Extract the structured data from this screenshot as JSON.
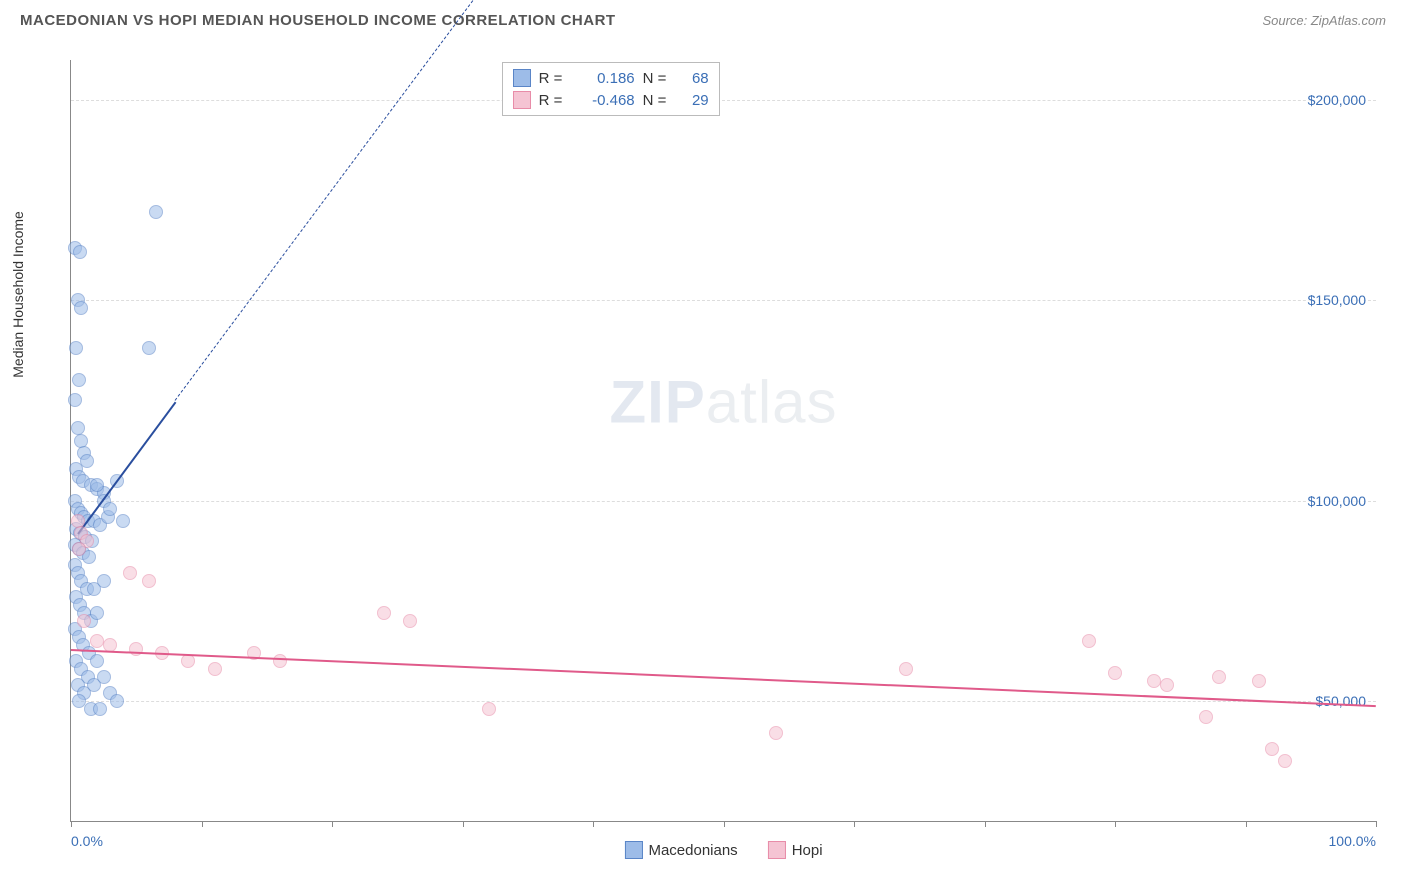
{
  "header": {
    "title": "MACEDONIAN VS HOPI MEDIAN HOUSEHOLD INCOME CORRELATION CHART",
    "source": "Source: ZipAtlas.com"
  },
  "watermark": {
    "bold": "ZIP",
    "light": "atlas"
  },
  "chart": {
    "type": "scatter",
    "ylabel": "Median Household Income",
    "xlim": [
      0,
      100
    ],
    "ylim": [
      20000,
      210000
    ],
    "background_color": "#ffffff",
    "grid_color": "#dddddd",
    "axis_color": "#888888",
    "tick_label_color": "#3b6fb6",
    "yticks": [
      {
        "v": 50000,
        "label": "$50,000"
      },
      {
        "v": 100000,
        "label": "$100,000"
      },
      {
        "v": 150000,
        "label": "$150,000"
      },
      {
        "v": 200000,
        "label": "$200,000"
      }
    ],
    "xticks_major": [
      0,
      10,
      20,
      30,
      40,
      50,
      60,
      70,
      80,
      90,
      100
    ],
    "xtick_labels": [
      {
        "v": 0,
        "label": "0.0%"
      },
      {
        "v": 100,
        "label": "100.0%"
      }
    ],
    "marker_radius": 7,
    "marker_opacity": 0.55,
    "series": [
      {
        "name": "Macedonians",
        "fill": "#9dbce8",
        "stroke": "#5a85c7",
        "r_value": "0.186",
        "n_value": "68",
        "trend": {
          "x1": 0.5,
          "y1": 92000,
          "x2": 8,
          "y2": 125000,
          "solid_color": "#2a4e9e",
          "dash_to_x": 40,
          "dash_to_y": 265000
        },
        "points": [
          [
            0.3,
            163000
          ],
          [
            0.7,
            162000
          ],
          [
            0.5,
            150000
          ],
          [
            0.8,
            148000
          ],
          [
            0.4,
            138000
          ],
          [
            0.6,
            130000
          ],
          [
            6.5,
            172000
          ],
          [
            6.0,
            138000
          ],
          [
            0.3,
            125000
          ],
          [
            0.5,
            118000
          ],
          [
            0.8,
            115000
          ],
          [
            1.0,
            112000
          ],
          [
            1.2,
            110000
          ],
          [
            0.4,
            108000
          ],
          [
            0.6,
            106000
          ],
          [
            0.9,
            105000
          ],
          [
            1.5,
            104000
          ],
          [
            2.0,
            103000
          ],
          [
            2.5,
            102000
          ],
          [
            0.3,
            100000
          ],
          [
            0.5,
            98000
          ],
          [
            0.8,
            97000
          ],
          [
            1.0,
            96000
          ],
          [
            1.3,
            95000
          ],
          [
            1.8,
            95000
          ],
          [
            2.2,
            94000
          ],
          [
            2.8,
            96000
          ],
          [
            0.4,
            93000
          ],
          [
            0.7,
            92000
          ],
          [
            1.1,
            91000
          ],
          [
            1.6,
            90000
          ],
          [
            0.3,
            89000
          ],
          [
            0.6,
            88000
          ],
          [
            0.9,
            87000
          ],
          [
            1.4,
            86000
          ],
          [
            2.0,
            104000
          ],
          [
            2.5,
            100000
          ],
          [
            3.0,
            98000
          ],
          [
            3.5,
            105000
          ],
          [
            4.0,
            95000
          ],
          [
            0.3,
            84000
          ],
          [
            0.5,
            82000
          ],
          [
            0.8,
            80000
          ],
          [
            1.2,
            78000
          ],
          [
            1.8,
            78000
          ],
          [
            2.5,
            80000
          ],
          [
            0.4,
            76000
          ],
          [
            0.7,
            74000
          ],
          [
            1.0,
            72000
          ],
          [
            1.5,
            70000
          ],
          [
            2.0,
            72000
          ],
          [
            0.3,
            68000
          ],
          [
            0.6,
            66000
          ],
          [
            0.9,
            64000
          ],
          [
            1.4,
            62000
          ],
          [
            0.4,
            60000
          ],
          [
            0.8,
            58000
          ],
          [
            1.3,
            56000
          ],
          [
            2.0,
            60000
          ],
          [
            0.5,
            54000
          ],
          [
            1.0,
            52000
          ],
          [
            1.8,
            54000
          ],
          [
            2.5,
            56000
          ],
          [
            0.6,
            50000
          ],
          [
            1.5,
            48000
          ],
          [
            2.2,
            48000
          ],
          [
            3.0,
            52000
          ],
          [
            3.5,
            50000
          ]
        ]
      },
      {
        "name": "Hopi",
        "fill": "#f5c4d3",
        "stroke": "#e88ca8",
        "r_value": "-0.468",
        "n_value": "29",
        "trend": {
          "x1": 0,
          "y1": 63000,
          "x2": 100,
          "y2": 49000,
          "solid_color": "#e05a8a"
        },
        "points": [
          [
            0.5,
            95000
          ],
          [
            0.8,
            92000
          ],
          [
            1.2,
            90000
          ],
          [
            0.6,
            88000
          ],
          [
            4.5,
            82000
          ],
          [
            6.0,
            80000
          ],
          [
            1.0,
            70000
          ],
          [
            2.0,
            65000
          ],
          [
            3.0,
            64000
          ],
          [
            5.0,
            63000
          ],
          [
            7.0,
            62000
          ],
          [
            9.0,
            60000
          ],
          [
            11.0,
            58000
          ],
          [
            14.0,
            62000
          ],
          [
            16.0,
            60000
          ],
          [
            24.0,
            72000
          ],
          [
            26.0,
            70000
          ],
          [
            32.0,
            48000
          ],
          [
            54.0,
            42000
          ],
          [
            64.0,
            58000
          ],
          [
            78.0,
            65000
          ],
          [
            80.0,
            57000
          ],
          [
            83.0,
            55000
          ],
          [
            84.0,
            54000
          ],
          [
            88.0,
            56000
          ],
          [
            91.0,
            55000
          ],
          [
            87.0,
            46000
          ],
          [
            92.0,
            38000
          ],
          [
            93.0,
            35000
          ]
        ]
      }
    ],
    "bottom_legend": [
      {
        "label": "Macedonians",
        "fill": "#9dbce8",
        "stroke": "#5a85c7"
      },
      {
        "label": "Hopi",
        "fill": "#f5c4d3",
        "stroke": "#e88ca8"
      }
    ]
  }
}
